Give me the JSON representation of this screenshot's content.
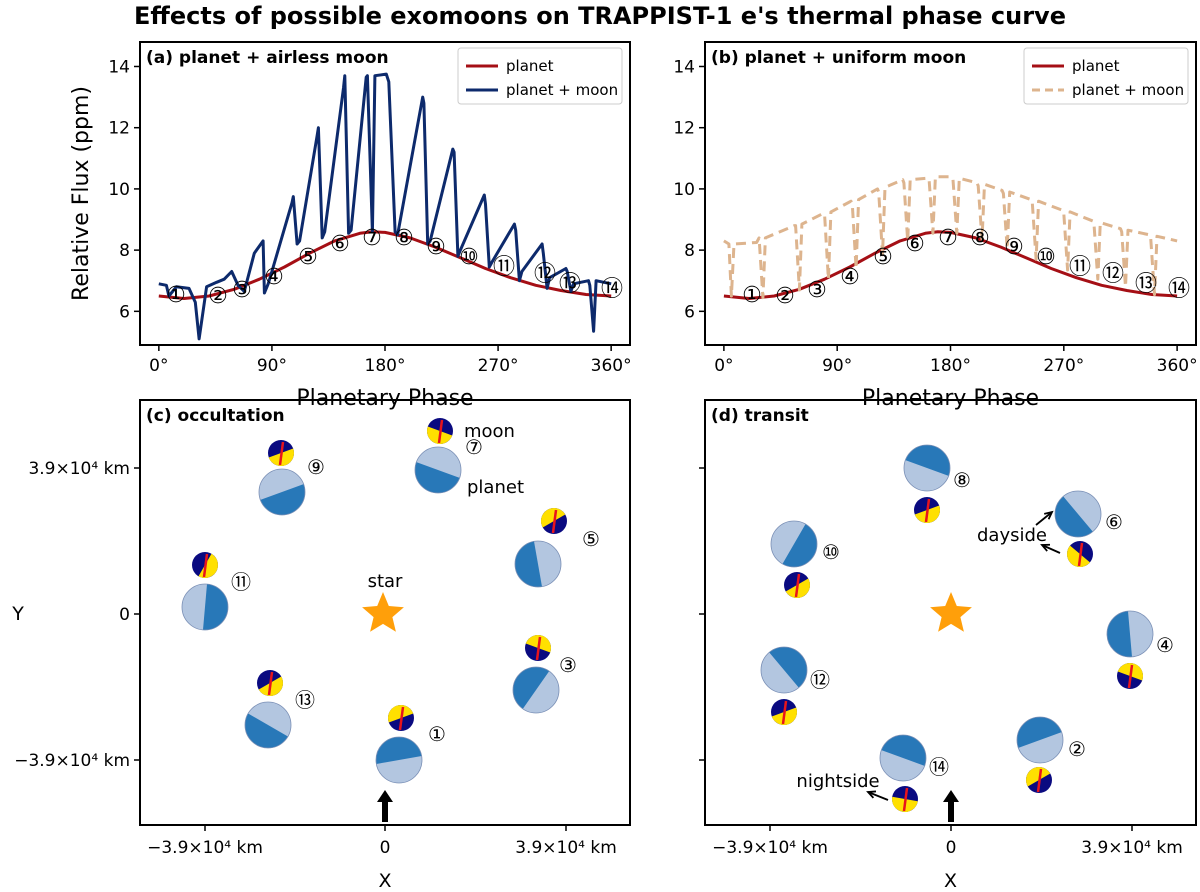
{
  "title": "Effects of possible exomoons on TRAPPIST-1 e's thermal phase curve",
  "colors": {
    "planet_line": "#a50f15",
    "moon_line_a": "#0d2a6c",
    "moon_line_b": "#ddb48e",
    "planet_light": "#b3c6e0",
    "planet_dark": "#2878b8",
    "moon_navy": "#0a0a80",
    "moon_yellow": "#ffe000",
    "moon_axis": "#e8141c",
    "star": "#ff9f0a"
  },
  "chart_data": [
    {
      "type": "line",
      "panel": "a",
      "panel_label": "(a) planet + airless moon",
      "xlabel": "Planetary Phase",
      "ylabel": "Relative Flux (ppm)",
      "xlim": [
        -15,
        375
      ],
      "ylim": [
        4.9,
        14.8
      ],
      "xticks": [
        0,
        90,
        180,
        270,
        360
      ],
      "xtick_labels": [
        "0°",
        "90°",
        "180°",
        "270°",
        "360°"
      ],
      "yticks": [
        6,
        8,
        10,
        12,
        14
      ],
      "ytick_labels": [
        "6",
        "8",
        "10",
        "12",
        "14"
      ],
      "legend": [
        "planet",
        "planet + moon"
      ],
      "legend_position": "top-right",
      "series": [
        {
          "name": "planet",
          "style": "solid",
          "x": [
            0,
            20,
            40,
            60,
            80,
            100,
            120,
            140,
            160,
            170,
            180,
            200,
            220,
            240,
            260,
            280,
            300,
            320,
            340,
            360
          ],
          "y": [
            6.5,
            6.42,
            6.5,
            6.72,
            7.05,
            7.45,
            7.9,
            8.3,
            8.55,
            8.6,
            8.58,
            8.4,
            8.1,
            7.75,
            7.4,
            7.1,
            6.85,
            6.68,
            6.55,
            6.5
          ]
        },
        {
          "name": "planet + moon",
          "style": "solid",
          "x": [
            0,
            6,
            8,
            14,
            24,
            29,
            32,
            38,
            46,
            52,
            58,
            63,
            68,
            76,
            83,
            84,
            87,
            90,
            106,
            107,
            110,
            112,
            126,
            127,
            130,
            132,
            147,
            148,
            151,
            153,
            165,
            166,
            170,
            172,
            181,
            183,
            188,
            190,
            210,
            211,
            214,
            216,
            234,
            235,
            238,
            240,
            259,
            260,
            263,
            265,
            283,
            284,
            287,
            289,
            305,
            306,
            309,
            311,
            324,
            325,
            328,
            330,
            342,
            343,
            346,
            348,
            360
          ],
          "y": [
            6.9,
            6.85,
            6.5,
            6.8,
            6.75,
            6.3,
            5.1,
            6.8,
            6.95,
            7.05,
            7.3,
            6.85,
            6.65,
            7.9,
            8.3,
            6.6,
            6.9,
            7.3,
            9.55,
            9.75,
            8.2,
            8.3,
            11.75,
            12.0,
            8.4,
            8.6,
            13.3,
            13.7,
            8.55,
            8.65,
            13.65,
            13.7,
            8.6,
            13.7,
            13.75,
            13.5,
            8.6,
            8.5,
            13.0,
            12.8,
            8.2,
            8.3,
            11.3,
            11.2,
            7.8,
            8.0,
            9.8,
            9.5,
            7.45,
            7.6,
            8.85,
            8.65,
            7.0,
            7.3,
            8.2,
            7.9,
            6.75,
            7.1,
            7.4,
            7.3,
            6.65,
            6.9,
            7.0,
            6.85,
            5.35,
            7.0,
            6.9
          ]
        }
      ],
      "markers": [
        "1",
        "2",
        "3",
        "4",
        "5",
        "6",
        "7",
        "8",
        "9",
        "10",
        "11",
        "12",
        "13",
        "14"
      ]
    },
    {
      "type": "line",
      "panel": "b",
      "panel_label": "(b) planet + uniform moon",
      "xlabel": "Planetary Phase",
      "ylabel": "",
      "xlim": [
        -15,
        375
      ],
      "ylim": [
        4.9,
        14.8
      ],
      "xticks": [
        0,
        90,
        180,
        270,
        360
      ],
      "xtick_labels": [
        "0°",
        "90°",
        "180°",
        "270°",
        "360°"
      ],
      "yticks": [
        6,
        8,
        10,
        12,
        14
      ],
      "ytick_labels": [
        "6",
        "8",
        "10",
        "12",
        "14"
      ],
      "legend": [
        "planet",
        "planet + moon"
      ],
      "legend_position": "top-right",
      "series": [
        {
          "name": "planet",
          "style": "solid",
          "x": [
            0,
            20,
            40,
            60,
            80,
            100,
            120,
            140,
            160,
            170,
            180,
            200,
            220,
            240,
            260,
            280,
            300,
            320,
            340,
            360
          ],
          "y": [
            6.5,
            6.42,
            6.5,
            6.72,
            7.05,
            7.45,
            7.9,
            8.3,
            8.55,
            8.6,
            8.58,
            8.4,
            8.1,
            7.75,
            7.4,
            7.1,
            6.85,
            6.68,
            6.55,
            6.5
          ]
        },
        {
          "name": "planet + moon",
          "style": "dashed",
          "x": [
            0,
            4,
            6,
            8,
            26,
            28,
            31,
            33,
            56,
            57,
            60,
            62,
            79,
            80,
            83,
            85,
            101,
            102,
            105,
            107,
            122,
            123,
            126,
            128,
            142,
            143,
            146,
            148,
            162,
            163,
            166,
            168,
            180,
            182,
            185,
            187,
            201,
            202,
            205,
            207,
            221,
            222,
            225,
            227,
            244,
            245,
            248,
            250,
            269,
            270,
            273,
            275,
            293,
            294,
            297,
            299,
            315,
            316,
            319,
            321,
            338,
            339,
            342,
            344,
            360
          ],
          "y": [
            8.3,
            8.2,
            6.5,
            8.2,
            8.25,
            8.4,
            6.45,
            8.4,
            8.8,
            8.8,
            6.7,
            8.85,
            9.2,
            9.15,
            7.05,
            9.25,
            9.6,
            9.5,
            7.4,
            9.65,
            10.0,
            9.9,
            7.85,
            10.05,
            10.3,
            10.2,
            8.3,
            10.3,
            10.35,
            10.3,
            8.55,
            10.4,
            10.4,
            10.3,
            8.55,
            10.35,
            10.2,
            10.1,
            8.35,
            10.15,
            9.95,
            9.85,
            8.05,
            9.9,
            9.65,
            9.55,
            7.7,
            9.6,
            9.3,
            9.2,
            7.35,
            9.25,
            8.95,
            8.85,
            7.05,
            8.9,
            8.7,
            8.6,
            6.8,
            8.65,
            8.5,
            8.4,
            6.55,
            8.45,
            8.3
          ]
        }
      ],
      "markers": [
        "1",
        "2",
        "3",
        "4",
        "5",
        "6",
        "7",
        "8",
        "9",
        "10",
        "11",
        "12",
        "13",
        "14"
      ]
    },
    {
      "type": "scatter",
      "panel": "c",
      "panel_label": "(c) occultation",
      "xlabel": "X",
      "ylabel": "Y",
      "xticks_km": [
        -39000,
        0,
        39000
      ],
      "xtick_labels": [
        "−3.9×10⁴ km",
        "0",
        "3.9×10⁴ km"
      ],
      "yticks_km": [
        39000,
        0,
        -39000
      ],
      "ytick_labels": [
        "3.9×10⁴ km",
        "0",
        "−3.9×10⁴ km"
      ],
      "annotations": [
        "moon",
        "planet",
        "star"
      ],
      "orbit_positions": [
        "1",
        "3",
        "5",
        "7",
        "9",
        "11",
        "13"
      ]
    },
    {
      "type": "scatter",
      "panel": "d",
      "panel_label": "(d) transit",
      "xlabel": "X",
      "ylabel": "",
      "xticks_km": [
        -39000,
        0,
        39000
      ],
      "xtick_labels": [
        "−3.9×10⁴ km",
        "0",
        "3.9×10⁴ km"
      ],
      "annotations": [
        "dayside",
        "nightside"
      ],
      "orbit_positions": [
        "2",
        "4",
        "6",
        "8",
        "10",
        "12",
        "14"
      ]
    }
  ]
}
